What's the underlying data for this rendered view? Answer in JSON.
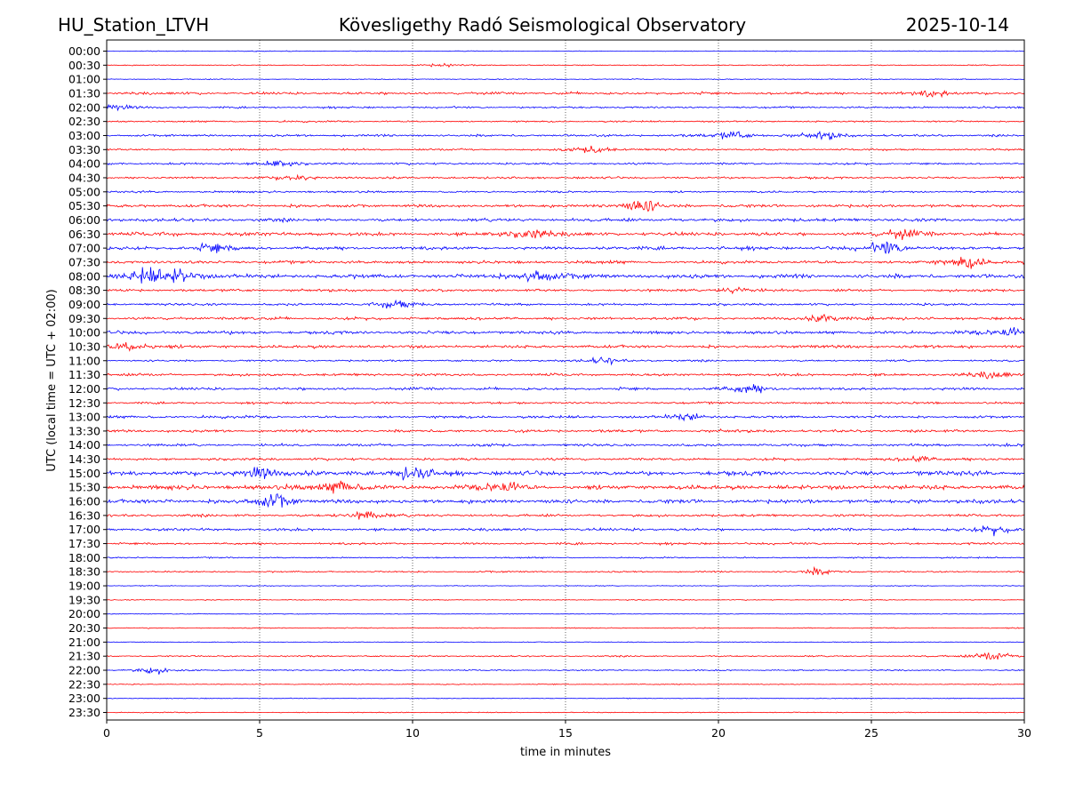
{
  "chart_data": {
    "type": "line",
    "title": "Kövesligethy Radó Seismological Observatory",
    "station": "HU_Station_LTVH",
    "date": "2025-10-14",
    "xlabel": "time in minutes",
    "ylabel": "UTC (local time = UTC + 02:00)",
    "xlim": [
      0,
      30
    ],
    "x_ticks": [
      0,
      5,
      10,
      15,
      20,
      25,
      30
    ],
    "grid": "vertical dotted lines at x = 5, 10, 15, 20, 25",
    "trace_colors": [
      "#0000ff",
      "#ff0000"
    ],
    "row_labels": [
      "00:00",
      "00:30",
      "01:00",
      "01:30",
      "02:00",
      "02:30",
      "03:00",
      "03:30",
      "04:00",
      "04:30",
      "05:00",
      "05:30",
      "06:00",
      "06:30",
      "07:00",
      "07:30",
      "08:00",
      "08:30",
      "09:00",
      "09:30",
      "10:00",
      "10:30",
      "11:00",
      "11:30",
      "12:00",
      "12:30",
      "13:00",
      "13:30",
      "14:00",
      "14:30",
      "15:00",
      "15:30",
      "16:00",
      "16:30",
      "17:00",
      "17:30",
      "18:00",
      "18:30",
      "19:00",
      "19:30",
      "20:00",
      "20:30",
      "21:00",
      "21:30",
      "22:00",
      "22:30",
      "23:00",
      "23:30"
    ],
    "row_activity": [
      0.05,
      0.1,
      0.08,
      0.45,
      0.3,
      0.25,
      0.4,
      0.3,
      0.35,
      0.35,
      0.3,
      0.55,
      0.6,
      0.7,
      0.6,
      0.55,
      0.75,
      0.45,
      0.4,
      0.5,
      0.6,
      0.55,
      0.3,
      0.45,
      0.5,
      0.35,
      0.45,
      0.5,
      0.45,
      0.45,
      0.85,
      0.85,
      0.75,
      0.45,
      0.5,
      0.35,
      0.2,
      0.2,
      0.05,
      0.08,
      0.05,
      0.1,
      0.05,
      0.2,
      0.15,
      0.08,
      0.05,
      0.08
    ],
    "events": [
      {
        "row": "00:30",
        "minute": 11.0,
        "strength": 0.25
      },
      {
        "row": "01:30",
        "minute": 27.0,
        "strength": 0.5
      },
      {
        "row": "02:00",
        "minute": 0.2,
        "strength": 0.5
      },
      {
        "row": "03:00",
        "minute": 20.5,
        "strength": 0.6
      },
      {
        "row": "03:00",
        "minute": 23.5,
        "strength": 0.5
      },
      {
        "row": "03:30",
        "minute": 16.0,
        "strength": 0.5
      },
      {
        "row": "04:00",
        "minute": 5.5,
        "strength": 0.5
      },
      {
        "row": "04:30",
        "minute": 6.2,
        "strength": 0.5
      },
      {
        "row": "05:30",
        "minute": 17.5,
        "strength": 1.0
      },
      {
        "row": "06:30",
        "minute": 13.8,
        "strength": 0.8
      },
      {
        "row": "06:30",
        "minute": 26.0,
        "strength": 0.7
      },
      {
        "row": "07:00",
        "minute": 25.5,
        "strength": 0.9
      },
      {
        "row": "07:00",
        "minute": 3.5,
        "strength": 0.6
      },
      {
        "row": "07:30",
        "minute": 28.2,
        "strength": 0.8
      },
      {
        "row": "08:00",
        "minute": 1.3,
        "strength": 1.0
      },
      {
        "row": "08:00",
        "minute": 2.4,
        "strength": 1.0
      },
      {
        "row": "08:00",
        "minute": 14.0,
        "strength": 1.0
      },
      {
        "row": "08:30",
        "minute": 20.5,
        "strength": 0.4
      },
      {
        "row": "09:00",
        "minute": 9.5,
        "strength": 0.6
      },
      {
        "row": "09:30",
        "minute": 23.5,
        "strength": 0.6
      },
      {
        "row": "10:00",
        "minute": 29.5,
        "strength": 0.7
      },
      {
        "row": "10:30",
        "minute": 0.8,
        "strength": 0.8
      },
      {
        "row": "11:00",
        "minute": 16.3,
        "strength": 0.5
      },
      {
        "row": "11:30",
        "minute": 29.0,
        "strength": 0.5
      },
      {
        "row": "12:00",
        "minute": 21.0,
        "strength": 0.6
      },
      {
        "row": "13:00",
        "minute": 19.0,
        "strength": 0.5
      },
      {
        "row": "14:30",
        "minute": 26.5,
        "strength": 0.5
      },
      {
        "row": "15:00",
        "minute": 5.0,
        "strength": 0.9
      },
      {
        "row": "15:00",
        "minute": 10.0,
        "strength": 0.9
      },
      {
        "row": "15:30",
        "minute": 7.7,
        "strength": 1.0
      },
      {
        "row": "15:30",
        "minute": 13.0,
        "strength": 0.8
      },
      {
        "row": "16:00",
        "minute": 5.5,
        "strength": 0.9
      },
      {
        "row": "16:30",
        "minute": 8.5,
        "strength": 0.6
      },
      {
        "row": "17:00",
        "minute": 29.0,
        "strength": 0.6
      },
      {
        "row": "18:30",
        "minute": 23.3,
        "strength": 0.5
      },
      {
        "row": "21:30",
        "minute": 29.0,
        "strength": 0.7
      },
      {
        "row": "22:00",
        "minute": 1.5,
        "strength": 0.5
      }
    ]
  }
}
